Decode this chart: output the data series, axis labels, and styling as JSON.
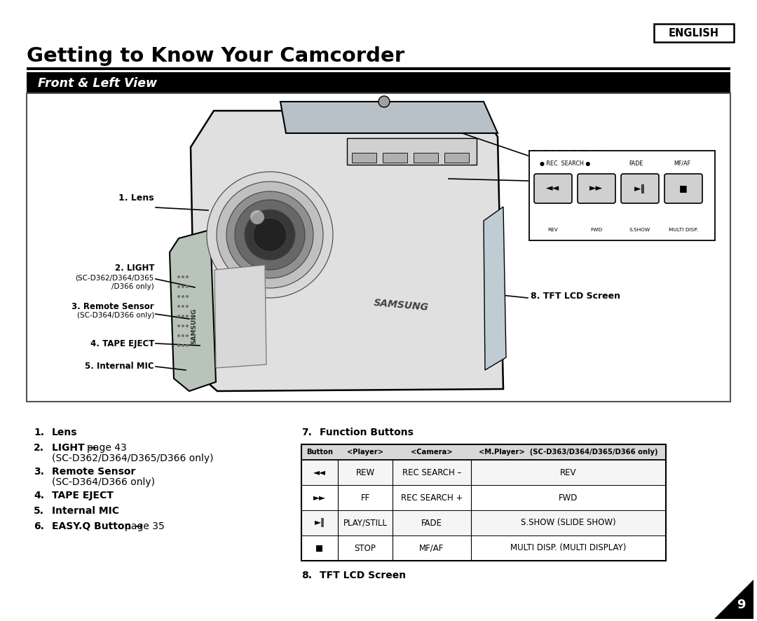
{
  "title": "Getting to Know Your Camcorder",
  "section_label": "Front & Left View",
  "english_label": "ENGLISH",
  "bg_color": "#ffffff",
  "page_number": "9",
  "table_headers": [
    "Button",
    "<Player>",
    "<Camera>",
    "<M.Player>  (SC-D363/D364/D365/D366 only)"
  ],
  "table_rows": [
    [
      "◄◄",
      "REW",
      "REC SEARCH –",
      "REV"
    ],
    [
      "►►",
      "FF",
      "REC SEARCH +",
      "FWD"
    ],
    [
      "►‖",
      "PLAY/STILL",
      "FADE",
      "S.SHOW (SLIDE SHOW)"
    ],
    [
      "■",
      "STOP",
      "MF/AF",
      "MULTI DISP. (MULTI DISPLAY)"
    ]
  ],
  "btn_labels": [
    "◄◄",
    "►►",
    "►‖",
    "■"
  ],
  "btn_bottom": [
    "REV",
    "FWD",
    "S.SHOW",
    "MULTI DISP."
  ],
  "body_color": "#e0e0e0",
  "grip_color": "#b8c4b8",
  "visor_color": "#b8c0c8",
  "lcd_color": "#c0ccd4",
  "tape_color": "#d8d8d8"
}
